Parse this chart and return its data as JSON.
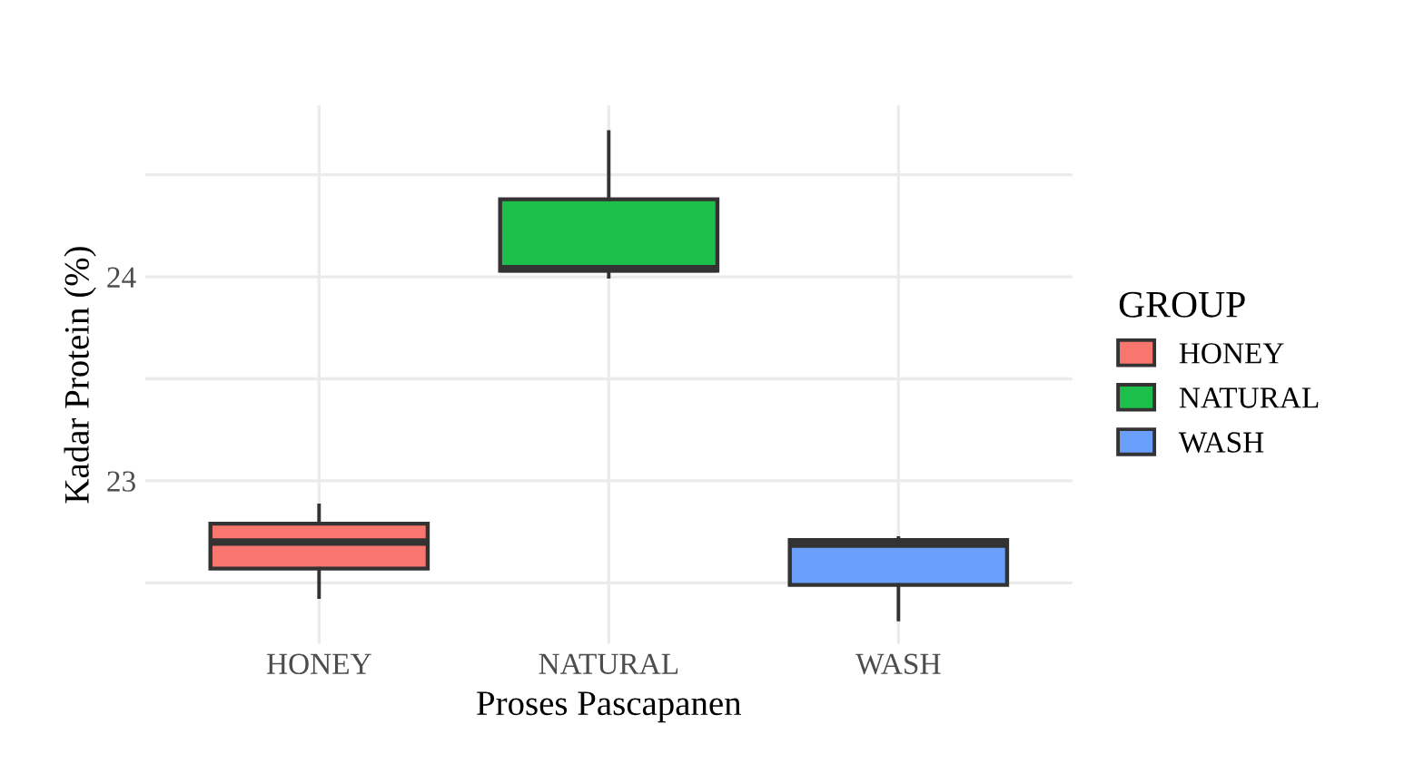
{
  "chart_data": {
    "type": "box",
    "xlabel": "Proses Pascapanen",
    "ylabel": "Kadar Protein (%)",
    "legend_title": "GROUP",
    "categories": [
      "HONEY",
      "NATURAL",
      "WASH"
    ],
    "series": [
      {
        "name": "HONEY",
        "color": "#f8766d",
        "boxes": [
          {
            "low": 22.43,
            "q1": 22.57,
            "median": 22.7,
            "q3": 22.79,
            "high": 22.88
          },
          null,
          null
        ]
      },
      {
        "name": "NATURAL",
        "color": "#1bbf4a",
        "boxes": [
          null,
          {
            "low": 24.0,
            "q1": 24.03,
            "median": 24.04,
            "q3": 24.38,
            "high": 24.71
          },
          null
        ]
      },
      {
        "name": "WASH",
        "color": "#6a9ffc",
        "boxes": [
          null,
          null,
          {
            "low": 22.32,
            "q1": 22.49,
            "median": 22.69,
            "q3": 22.71,
            "high": 22.72
          }
        ]
      }
    ],
    "ylim": [
      22.2,
      24.84
    ],
    "yticks": [
      {
        "value": 22.5,
        "label": null
      },
      23,
      {
        "value": 23.5,
        "label": null
      },
      24,
      {
        "value": 24.5,
        "label": null
      }
    ],
    "grid": true,
    "legend": "right"
  }
}
